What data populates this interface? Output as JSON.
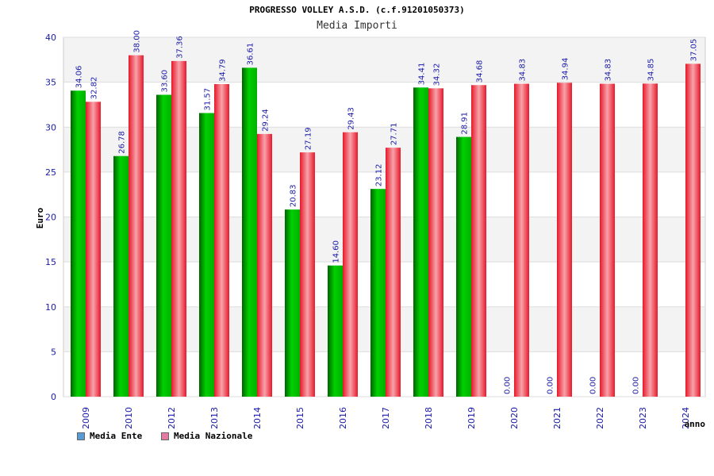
{
  "chart_data": {
    "type": "bar",
    "title": "PROGRESSO VOLLEY A.S.D. (c.f.91201050373)",
    "subtitle": "Media Importi",
    "xlabel": "anno",
    "ylabel": "Euro",
    "ylim": [
      0,
      40
    ],
    "yticks": [
      0,
      5,
      10,
      15,
      20,
      25,
      30,
      35,
      40
    ],
    "categories": [
      "2009",
      "2010",
      "2012",
      "2013",
      "2014",
      "2015",
      "2016",
      "2017",
      "2018",
      "2019",
      "2020",
      "2021",
      "2022",
      "2023",
      "2024"
    ],
    "series": [
      {
        "name": "Media Ente",
        "values": [
          34.06,
          26.78,
          33.6,
          31.57,
          36.61,
          20.83,
          14.6,
          23.12,
          34.41,
          28.91,
          0.0,
          0.0,
          0.0,
          0.0,
          null
        ],
        "labels": [
          "34.06",
          "26.78",
          "33.60",
          "31.57",
          "36.61",
          "20.83",
          "14.60",
          "23.12",
          "34.41",
          "28.91",
          "0.00",
          "0.00",
          "0.00",
          "0.00",
          ""
        ]
      },
      {
        "name": "Media Nazionale",
        "values": [
          32.82,
          38.0,
          37.36,
          34.79,
          29.24,
          27.19,
          29.43,
          27.71,
          34.32,
          34.68,
          34.83,
          34.94,
          34.83,
          34.85,
          37.05
        ],
        "labels": [
          "32.82",
          "38.00",
          "37.36",
          "34.79",
          "29.24",
          "27.19",
          "29.43",
          "27.71",
          "34.32",
          "34.68",
          "34.83",
          "34.94",
          "34.83",
          "34.85",
          "37.05"
        ]
      }
    ],
    "legend": [
      {
        "label": "Media Ente",
        "color": "#5b9bd5"
      },
      {
        "label": "Media Nazionale",
        "color": "#e37aa6"
      }
    ],
    "grid": true,
    "legend_position": "bottom-left"
  }
}
